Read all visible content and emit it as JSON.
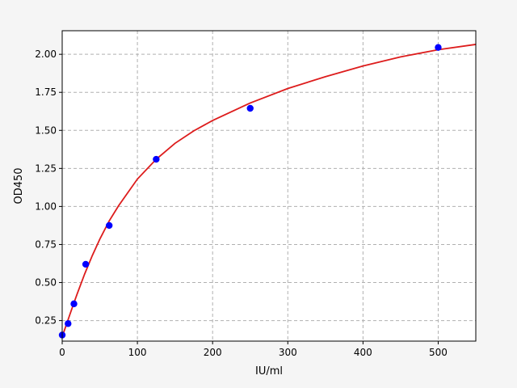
{
  "chart_data": {
    "type": "scatter",
    "title": "",
    "xlabel": "IU/ml",
    "ylabel": "OD450",
    "xlim": [
      0,
      550
    ],
    "ylim": [
      0.115,
      2.155
    ],
    "xticks": [
      0,
      100,
      200,
      300,
      400,
      500
    ],
    "xtick_labels": [
      "0",
      "100",
      "200",
      "300",
      "400",
      "500"
    ],
    "yticks": [
      0.25,
      0.5,
      0.75,
      1.0,
      1.25,
      1.5,
      1.75,
      2.0
    ],
    "ytick_labels": [
      "0.25",
      "0.50",
      "0.75",
      "1.00",
      "1.25",
      "1.50",
      "1.75",
      "2.00"
    ],
    "grid": true,
    "series": [
      {
        "kind": "scatter",
        "color": "#0000ff",
        "x": [
          0,
          7.8,
          15.6,
          31.25,
          62.5,
          125,
          250,
          500
        ],
        "y": [
          0.155,
          0.23,
          0.36,
          0.62,
          0.875,
          1.31,
          1.645,
          2.045
        ]
      },
      {
        "kind": "line",
        "color": "#dd1c1c",
        "x": [
          0,
          5,
          10,
          15,
          20,
          30,
          40,
          50,
          62.5,
          75,
          100,
          125,
          150,
          175,
          200,
          250,
          300,
          350,
          400,
          450,
          500,
          550
        ],
        "y": [
          0.145,
          0.215,
          0.287,
          0.358,
          0.427,
          0.558,
          0.677,
          0.785,
          0.905,
          1.005,
          1.18,
          1.31,
          1.415,
          1.497,
          1.565,
          1.68,
          1.775,
          1.853,
          1.923,
          1.983,
          2.03,
          2.065
        ]
      }
    ]
  }
}
